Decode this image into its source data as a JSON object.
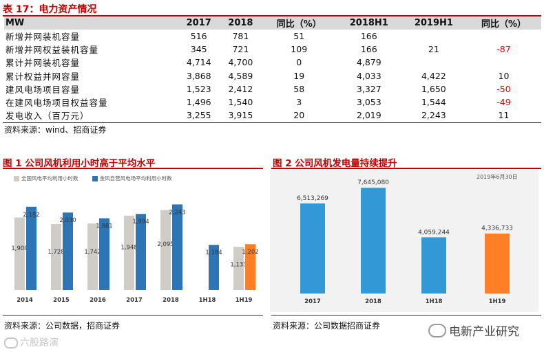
{
  "table": {
    "title": "表 17：电力资产情况",
    "headers": [
      "MW",
      "2017",
      "2018",
      "同比（%）",
      "2018H1",
      "2019H1",
      "同比（%）"
    ],
    "rows": [
      [
        "新增并网装机容量",
        "516",
        "781",
        "51",
        "166",
        "",
        ""
      ],
      [
        "新增并网权益装机容量",
        "345",
        "721",
        "109",
        "166",
        "21",
        "-87"
      ],
      [
        "累计并网装机容量",
        "4,714",
        "4,700",
        "0",
        "4,879",
        "",
        ""
      ],
      [
        "累计权益并网容量",
        "3,868",
        "4,589",
        "19",
        "4,033",
        "4,422",
        "10"
      ],
      [
        "建风电场项目容量",
        "1,523",
        "2,412",
        "58",
        "3,327",
        "1,650",
        "-50"
      ],
      [
        "在建风电场项目权益容量",
        "1,496",
        "1,540",
        "3",
        "3,053",
        "1,544",
        "-49"
      ],
      [
        "发电收入（百万元）",
        "3,255",
        "3,915",
        "20",
        "2,019",
        "2,243",
        "11"
      ]
    ],
    "source": "资料来源：wind、招商证券"
  },
  "fig1": {
    "title": "图 1 公司风机利用小时高于平均水平",
    "source": "资料来源：公司数据，招商证券"
  },
  "fig2": {
    "title": "图 2 公司风机发电量持续提升",
    "note": "2019年6月30日",
    "source": "资料来源：公司数据招商证券"
  },
  "watermark": {
    "left_logo": "六股路演",
    "right_text": "电新产业研究"
  },
  "colors": {
    "title_red": "#c00000",
    "gray_bar": "#d0ccc8",
    "blue_dark": "#2e75b6",
    "blue_light": "#3399d6",
    "orange": "#ff7f27"
  },
  "chart_data": [
    {
      "type": "bar",
      "categories": [
        "2014",
        "2015",
        "2016",
        "2017",
        "2018",
        "1H18",
        "1H19"
      ],
      "series": [
        {
          "name": "全国风电平均利用小时数",
          "values": [
            1900,
            1728,
            1742,
            1948,
            2095,
            null,
            1133
          ]
        },
        {
          "name": "金风自营风电场平均利用小时数",
          "values": [
            2182,
            2030,
            1881,
            1994,
            2243,
            1184,
            1202
          ]
        }
      ],
      "data_labels": [
        [
          "1,900",
          "1,728",
          "1,742",
          "1,948",
          "2,095",
          "",
          "1,133"
        ],
        [
          "2,182",
          "2,030",
          "1,881",
          "1,994",
          "2,243",
          "1,184",
          "1,202"
        ]
      ],
      "highlight_last": true
    },
    {
      "type": "bar",
      "categories": [
        "2017",
        "2018",
        "1H18",
        "1H19"
      ],
      "values": [
        6513269,
        7645080,
        4059244,
        4336733
      ],
      "data_labels": [
        "6,513,269",
        "7,645,080",
        "4,059,244",
        "4,336,733"
      ],
      "highlight_last": true
    }
  ]
}
